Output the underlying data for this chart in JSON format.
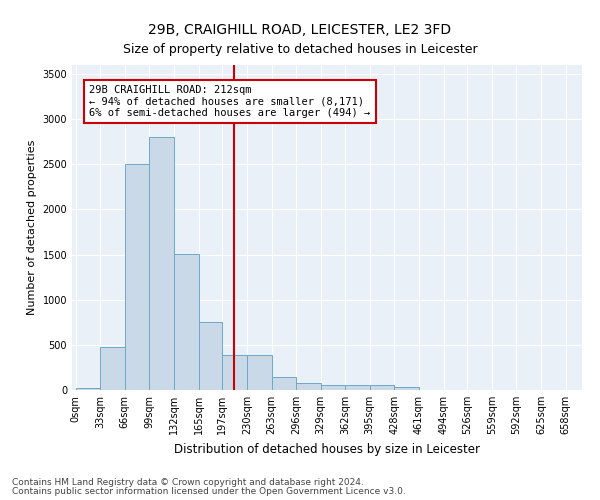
{
  "title1": "29B, CRAIGHILL ROAD, LEICESTER, LE2 3FD",
  "title2": "Size of property relative to detached houses in Leicester",
  "xlabel": "Distribution of detached houses by size in Leicester",
  "ylabel": "Number of detached properties",
  "bar_edges": [
    0,
    33,
    66,
    99,
    132,
    165,
    197,
    230,
    263,
    296,
    329,
    362,
    395,
    428,
    461,
    494,
    526,
    559,
    592,
    625,
    658
  ],
  "bar_heights": [
    25,
    480,
    2500,
    2800,
    1510,
    750,
    390,
    390,
    140,
    75,
    55,
    55,
    55,
    30,
    0,
    0,
    0,
    0,
    0,
    0
  ],
  "bar_color": "#c9d9e8",
  "bar_edge_color": "#6fa8c8",
  "property_size": 212,
  "vline_color": "#cc0000",
  "annotation_text": "29B CRAIGHILL ROAD: 212sqm\n← 94% of detached houses are smaller (8,171)\n6% of semi-detached houses are larger (494) →",
  "annotation_box_color": "#ffffff",
  "annotation_box_edge": "#cc0000",
  "ylim": [
    0,
    3600
  ],
  "yticks": [
    0,
    500,
    1000,
    1500,
    2000,
    2500,
    3000,
    3500
  ],
  "footer1": "Contains HM Land Registry data © Crown copyright and database right 2024.",
  "footer2": "Contains public sector information licensed under the Open Government Licence v3.0.",
  "bg_color": "#eaf0f8",
  "grid_color": "#ffffff",
  "title1_fontsize": 10,
  "title2_fontsize": 9,
  "tick_label_fontsize": 7,
  "ylabel_fontsize": 8,
  "xlabel_fontsize": 8.5,
  "footer_fontsize": 6.5,
  "annotation_fontsize": 7.5
}
